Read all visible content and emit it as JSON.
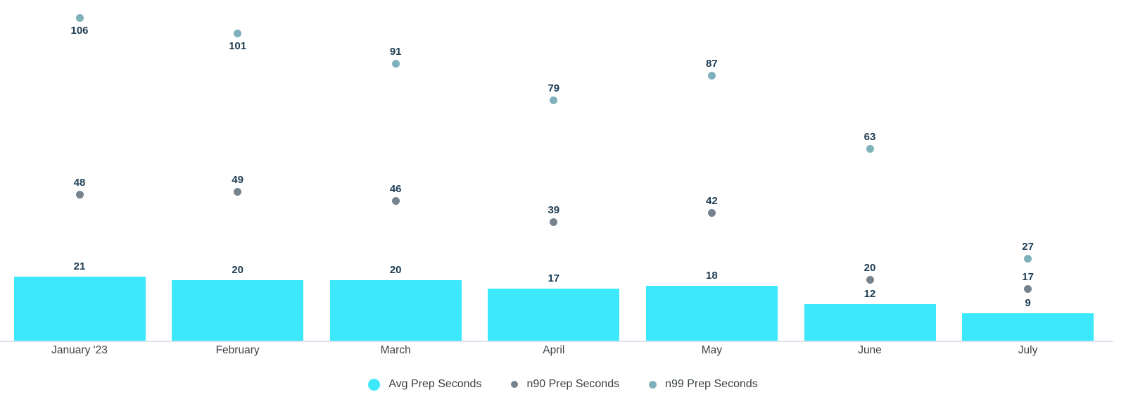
{
  "chart_data": {
    "type": "bar",
    "title": "",
    "xlabel": "",
    "ylabel": "",
    "categories": [
      "January '23",
      "February",
      "March",
      "April",
      "May",
      "June",
      "July"
    ],
    "series": [
      {
        "name": "Avg Prep Seconds",
        "render": "bar",
        "color": "#3de8fb",
        "values": [
          21,
          20,
          20,
          17,
          18,
          12,
          9
        ]
      },
      {
        "name": "n90 Prep Seconds",
        "render": "scatter",
        "color": "#75838f",
        "values": [
          48,
          49,
          46,
          39,
          42,
          20,
          17
        ]
      },
      {
        "name": "n99 Prep Seconds",
        "render": "scatter",
        "color": "#7eb1bc",
        "values": [
          106,
          101,
          91,
          79,
          87,
          63,
          27
        ]
      }
    ],
    "data_labels_shown": true,
    "label_placement_overrides": {
      "series_2_below_indices": [
        0,
        1
      ]
    },
    "ylim": [
      0,
      112
    ],
    "grid": false,
    "y_axis_ticks_shown": false,
    "legend_position": "bottom"
  },
  "colors": {
    "background": "#ffffff",
    "bar_fill": "#3de8fb",
    "n90_dot": "#75838f",
    "n99_dot": "#7eb1bc",
    "data_label_text": "#1d3d54",
    "category_label_text": "#3e4348",
    "legend_text": "#3a4145",
    "axis_line": "#dce1ec"
  },
  "legend": {
    "marker_shapes": [
      "circle",
      "circle",
      "circle"
    ]
  }
}
